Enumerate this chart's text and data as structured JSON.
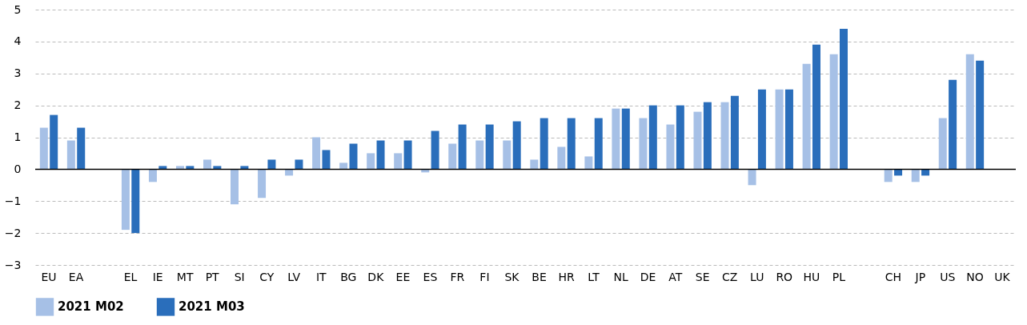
{
  "chart_data": {
    "type": "bar",
    "categories": [
      "EU",
      "EA",
      null,
      "EL",
      "IE",
      "MT",
      "PT",
      "SI",
      "CY",
      "LV",
      "IT",
      "BG",
      "DK",
      "EE",
      "ES",
      "FR",
      "FI",
      "SK",
      "BE",
      "HR",
      "LT",
      "NL",
      "DE",
      "AT",
      "SE",
      "CZ",
      "LU",
      "RO",
      "HU",
      "PL",
      null,
      "CH",
      "JP",
      "US",
      "NO",
      "UK"
    ],
    "series": [
      {
        "name": "2021 M02",
        "color": "#a6c0e6",
        "values": [
          1.3,
          0.9,
          null,
          -1.9,
          -0.4,
          0.1,
          0.3,
          -1.1,
          -0.9,
          -0.2,
          1.0,
          0.2,
          0.5,
          0.5,
          -0.1,
          0.8,
          0.9,
          0.9,
          0.3,
          0.7,
          0.4,
          1.9,
          1.6,
          1.4,
          1.8,
          2.1,
          -0.5,
          2.5,
          3.3,
          3.6,
          null,
          -0.4,
          -0.4,
          1.6,
          3.6,
          null
        ]
      },
      {
        "name": "2021 M03",
        "color": "#2a6ebb",
        "values": [
          1.7,
          1.3,
          null,
          -2.0,
          0.1,
          0.1,
          0.1,
          0.1,
          0.3,
          0.3,
          0.6,
          0.8,
          0.9,
          0.9,
          1.2,
          1.4,
          1.4,
          1.5,
          1.6,
          1.6,
          1.6,
          1.9,
          2.0,
          2.0,
          2.1,
          2.3,
          2.5,
          2.5,
          3.9,
          4.4,
          null,
          -0.2,
          -0.2,
          2.8,
          3.4,
          null
        ]
      }
    ],
    "ylim": [
      -3,
      5
    ],
    "yticks": [
      {
        "value": -3,
        "label": "−3"
      },
      {
        "value": -2,
        "label": "−2"
      },
      {
        "value": -1,
        "label": "−1"
      },
      0,
      1,
      2,
      3,
      4,
      5
    ],
    "grid": "y",
    "legend": "bottom"
  }
}
